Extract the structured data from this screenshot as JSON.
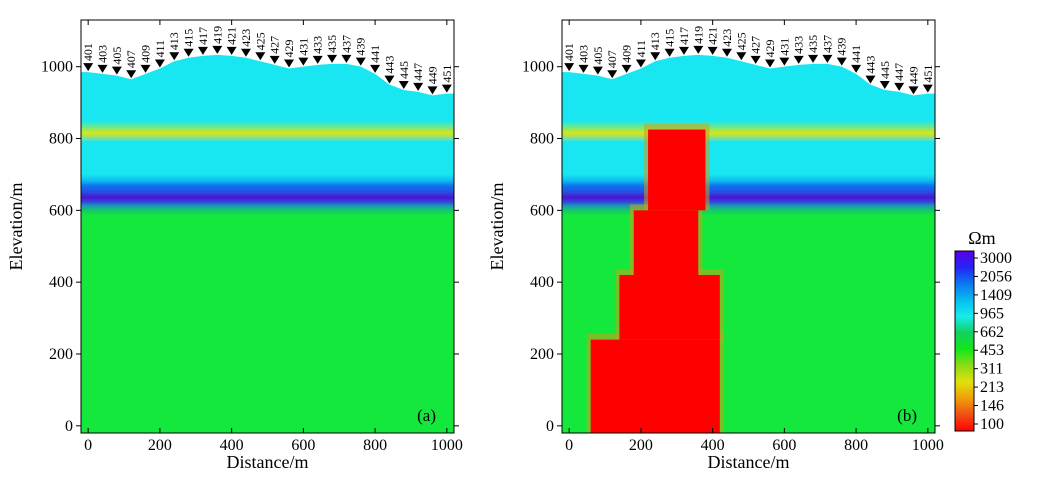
{
  "chart_data": [
    {
      "type": "heatmap",
      "panel_label": "(a)",
      "title": "",
      "xlabel": "Distance/m",
      "ylabel": "Elevation/m",
      "xlim": [
        -20,
        1020
      ],
      "ylim": [
        -20,
        1130
      ],
      "xticks": [
        0,
        200,
        400,
        600,
        800,
        1000
      ],
      "yticks": [
        0,
        200,
        400,
        600,
        800,
        1000
      ],
      "layers_ohm_m": [
        {
          "name": "upper layer",
          "from_elev": 600,
          "to_elev": 1040,
          "resistivity": 1000
        },
        {
          "name": "thin conductive layer",
          "from_elev": 800,
          "to_elev": 825,
          "resistivity": 300
        },
        {
          "name": "high-resistivity layer",
          "from_elev": 600,
          "to_elev": 680,
          "resistivity": 2500
        },
        {
          "name": "basement",
          "from_elev": -20,
          "to_elev": 600,
          "resistivity": 453
        }
      ],
      "anomaly": null
    },
    {
      "type": "heatmap",
      "panel_label": "(b)",
      "title": "",
      "xlabel": "Distance/m",
      "ylabel": "Elevation/m",
      "xlim": [
        -20,
        1020
      ],
      "ylim": [
        -20,
        1130
      ],
      "xticks": [
        0,
        200,
        400,
        600,
        800,
        1000
      ],
      "yticks": [
        0,
        200,
        400,
        600,
        800,
        1000
      ],
      "layers_ohm_m": [
        {
          "name": "upper layer",
          "from_elev": 600,
          "to_elev": 1040,
          "resistivity": 1000
        },
        {
          "name": "thin conductive layer",
          "from_elev": 800,
          "to_elev": 825,
          "resistivity": 300
        },
        {
          "name": "high-resistivity layer",
          "from_elev": 600,
          "to_elev": 680,
          "resistivity": 2500
        },
        {
          "name": "basement",
          "from_elev": -20,
          "to_elev": 600,
          "resistivity": 453
        }
      ],
      "anomaly": {
        "resistivity": 100,
        "steps": [
          {
            "elev_from": -20,
            "elev_to": 240,
            "x_from": 60,
            "x_to": 420
          },
          {
            "elev_from": 240,
            "elev_to": 420,
            "x_from": 140,
            "x_to": 420
          },
          {
            "elev_from": 420,
            "elev_to": 600,
            "x_from": 180,
            "x_to": 360
          },
          {
            "elev_from": 600,
            "elev_to": 825,
            "x_from": 220,
            "x_to": 380
          }
        ]
      }
    }
  ],
  "stations": {
    "labels": [
      "401",
      "403",
      "405",
      "407",
      "409",
      "411",
      "413",
      "415",
      "417",
      "419",
      "421",
      "423",
      "425",
      "427",
      "429",
      "431",
      "433",
      "435",
      "437",
      "439",
      "441",
      "443",
      "445",
      "447",
      "449",
      "451"
    ],
    "distance_m": [
      0,
      40,
      80,
      120,
      160,
      200,
      240,
      280,
      320,
      360,
      400,
      440,
      480,
      520,
      560,
      600,
      640,
      680,
      720,
      760,
      800,
      840,
      880,
      920,
      960,
      1000
    ],
    "surface_elev_m": [
      985,
      980,
      975,
      965,
      980,
      995,
      1015,
      1025,
      1030,
      1033,
      1030,
      1025,
      1015,
      1005,
      995,
      1000,
      1005,
      1008,
      1008,
      1000,
      980,
      950,
      935,
      930,
      920,
      925
    ]
  },
  "colorbar": {
    "title": "Ωm",
    "tick_labels": [
      "3000",
      "2056",
      "1409",
      "965",
      "662",
      "453",
      "311",
      "213",
      "146",
      "100"
    ],
    "colors": [
      "#5a00e6",
      "#2424f5",
      "#0a78f0",
      "#08bcf0",
      "#18ecec",
      "#14d060",
      "#10e818",
      "#8cdc18",
      "#e0e00a",
      "#f0a008",
      "#f05014",
      "#ff0000"
    ]
  },
  "colors": {
    "resistivity_3000": "#4b14d2",
    "resistivity_1409": "#0a74f0",
    "resistivity_1000": "#18e6f0",
    "resistivity_453": "#14e83c",
    "resistivity_300": "#d8e612",
    "resistivity_100": "#ff0000"
  }
}
